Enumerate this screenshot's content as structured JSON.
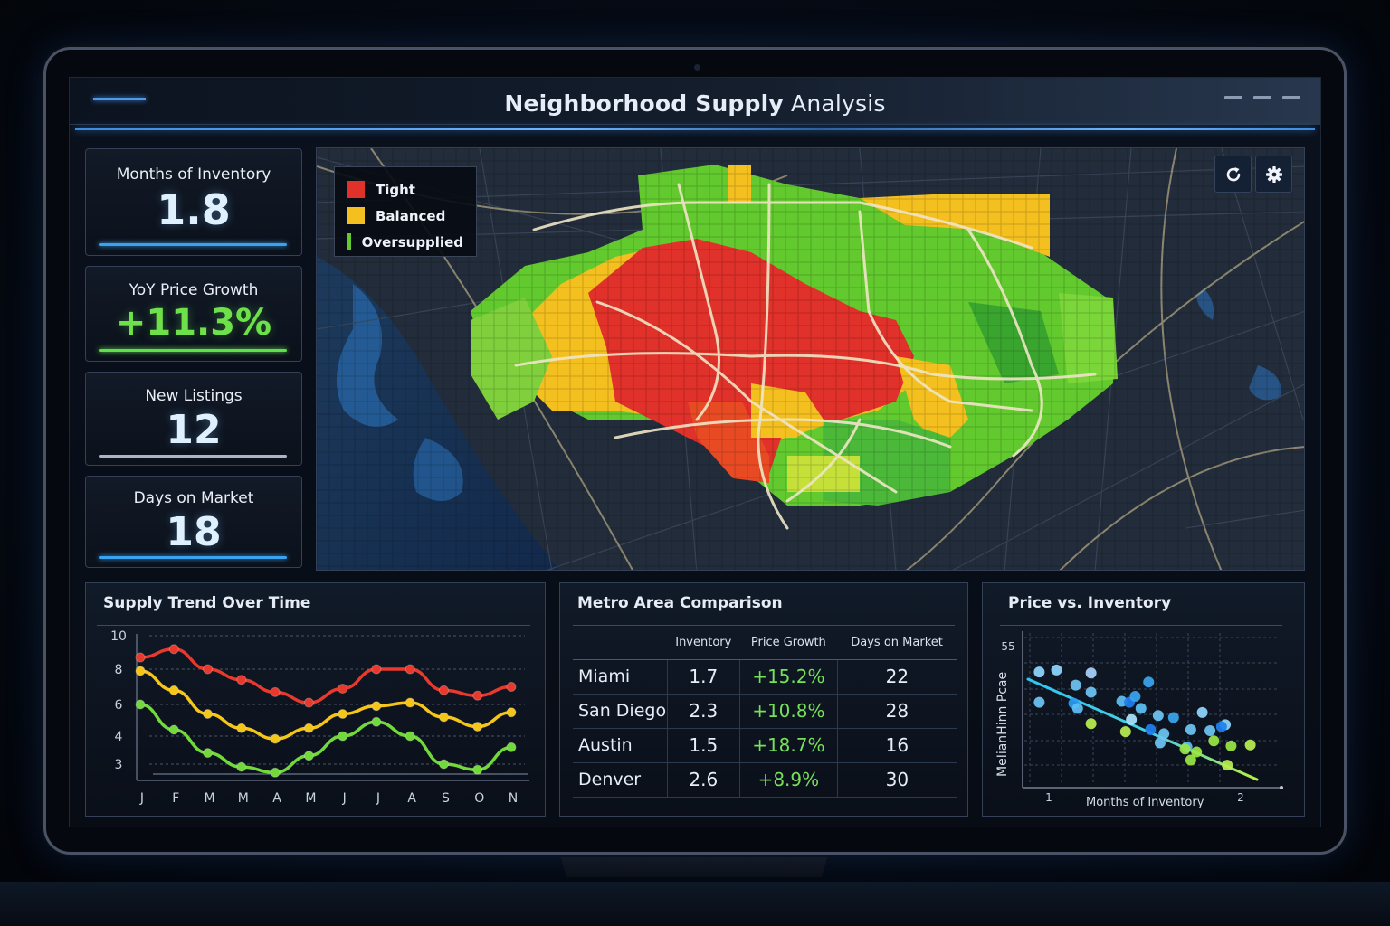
{
  "window": {
    "title_bold": "Neighborhood Supply",
    "title_rest": " Analysis"
  },
  "kpis": [
    {
      "label": "Months of Inventory",
      "value": "1.8",
      "accent": "#3aa3f0"
    },
    {
      "label": "YoY Price Growth",
      "value": "+11.3%",
      "accent": "#5fe04a"
    },
    {
      "label": "New Listings",
      "value": "12",
      "accent": "#a9b4c8"
    },
    {
      "label": "Days on Market",
      "value": "18",
      "accent": "#3aa3f0"
    }
  ],
  "map": {
    "legend": [
      {
        "label": "Tight",
        "color": "#e0312a"
      },
      {
        "label": "Balanced",
        "color": "#f4c020"
      },
      {
        "label": "Oversupplied",
        "color": "#62c92e"
      }
    ],
    "buttons": {
      "refresh": "refresh-icon",
      "settings": "gear-icon"
    }
  },
  "supply_trend": {
    "title": "Supply Trend Over Time"
  },
  "metro": {
    "title": "Metro Area Comparison",
    "columns": [
      "",
      "Inventory",
      "Price Growth",
      "Days on Market"
    ],
    "rows": [
      {
        "city": "Miami",
        "inventory": "1.7",
        "price_growth": "+15.2%",
        "days": "22"
      },
      {
        "city": "San Diego",
        "inventory": "2.3",
        "price_growth": "+10.8%",
        "days": "28"
      },
      {
        "city": "Austin",
        "inventory": "1.5",
        "price_growth": "+18.7%",
        "days": "16"
      },
      {
        "city": "Denver",
        "inventory": "2.6",
        "price_growth": "+8.9%",
        "days": "30"
      }
    ]
  },
  "price_vs_inventory": {
    "title": "Price vs. Inventory",
    "ylabel": "MeIianHinn Pcae",
    "xlabel": "Months of Inventory",
    "y_tick": "55",
    "x_ticks": [
      "1",
      "2"
    ]
  },
  "chart_data": [
    {
      "type": "line",
      "title": "Supply Trend Over Time",
      "categories": [
        "J",
        "F",
        "M",
        "M",
        "A",
        "M",
        "J",
        "J",
        "A",
        "S",
        "O",
        "N"
      ],
      "y_ticks": [
        "10",
        "8",
        "6",
        "4",
        "3"
      ],
      "ylim": [
        2.2,
        10
      ],
      "grid": true,
      "series": [
        {
          "name": "Tight",
          "color": "#e8392c",
          "values": [
            8.7,
            9.2,
            8.0,
            7.4,
            6.7,
            6.1,
            6.9,
            8.0,
            8.0,
            6.8,
            6.5,
            7.0
          ]
        },
        {
          "name": "Balanced",
          "color": "#f5c518",
          "values": [
            7.9,
            6.8,
            5.4,
            4.5,
            3.9,
            4.5,
            5.4,
            5.9,
            6.1,
            5.2,
            4.6,
            5.5
          ]
        },
        {
          "name": "Oversupplied",
          "color": "#72d93a",
          "values": [
            6.0,
            4.4,
            3.4,
            2.9,
            2.7,
            3.3,
            4.0,
            4.9,
            4.0,
            3.0,
            2.8,
            3.6
          ]
        }
      ]
    },
    {
      "type": "scatter",
      "title": "Price vs. Inventory",
      "xlabel": "Months of Inventory",
      "ylabel": "Median Price",
      "x_ticks": [
        "1",
        "2"
      ],
      "y_ticks": [
        "55"
      ],
      "grid": true,
      "trendline": {
        "from": [
          0.9,
          51.5
        ],
        "to": [
          2.1,
          40.5
        ]
      },
      "points": [
        {
          "x": 0.95,
          "y": 52.6,
          "c": "#8fd8ff"
        },
        {
          "x": 1.04,
          "y": 52.8,
          "c": "#8fd8ff"
        },
        {
          "x": 1.22,
          "y": 52.5,
          "c": "#a9d2ff"
        },
        {
          "x": 1.14,
          "y": 51.3,
          "c": "#6ec6f5"
        },
        {
          "x": 1.22,
          "y": 50.6,
          "c": "#6ec6f5"
        },
        {
          "x": 0.95,
          "y": 49.6,
          "c": "#6ec6f5"
        },
        {
          "x": 1.13,
          "y": 49.5,
          "c": "#2b9cf0"
        },
        {
          "x": 1.15,
          "y": 49.0,
          "c": "#5ec0f5"
        },
        {
          "x": 1.38,
          "y": 49.7,
          "c": "#5ec0f5"
        },
        {
          "x": 1.42,
          "y": 49.6,
          "c": "#1f7ff0"
        },
        {
          "x": 1.45,
          "y": 50.2,
          "c": "#3aa6f0"
        },
        {
          "x": 1.52,
          "y": 51.6,
          "c": "#3aa6f0"
        },
        {
          "x": 1.48,
          "y": 49.0,
          "c": "#5ec0f5"
        },
        {
          "x": 1.57,
          "y": 48.3,
          "c": "#6ec6f5"
        },
        {
          "x": 1.43,
          "y": 47.9,
          "c": "#a8e6ff"
        },
        {
          "x": 1.22,
          "y": 47.5,
          "c": "#b8f050"
        },
        {
          "x": 1.4,
          "y": 46.7,
          "c": "#b8f050"
        },
        {
          "x": 1.53,
          "y": 46.9,
          "c": "#1f7ff0"
        },
        {
          "x": 1.65,
          "y": 48.1,
          "c": "#3aa6f0"
        },
        {
          "x": 1.6,
          "y": 46.5,
          "c": "#6ec6f5"
        },
        {
          "x": 1.58,
          "y": 45.6,
          "c": "#6ec6f5"
        },
        {
          "x": 1.74,
          "y": 46.9,
          "c": "#6ec6f5"
        },
        {
          "x": 1.84,
          "y": 46.8,
          "c": "#6ec6f5"
        },
        {
          "x": 1.8,
          "y": 48.6,
          "c": "#8fd8ff"
        },
        {
          "x": 1.72,
          "y": 45.2,
          "c": "#5ec0f5"
        },
        {
          "x": 1.92,
          "y": 47.4,
          "c": "#8fd8ff"
        },
        {
          "x": 1.9,
          "y": 47.2,
          "c": "#1f7ff0"
        },
        {
          "x": 1.71,
          "y": 45.0,
          "c": "#9be845"
        },
        {
          "x": 1.77,
          "y": 44.7,
          "c": "#9be845"
        },
        {
          "x": 1.86,
          "y": 45.8,
          "c": "#9be845"
        },
        {
          "x": 1.95,
          "y": 45.3,
          "c": "#9be845"
        },
        {
          "x": 2.05,
          "y": 45.4,
          "c": "#b8f050"
        },
        {
          "x": 1.74,
          "y": 43.9,
          "c": "#9be845"
        },
        {
          "x": 1.93,
          "y": 43.4,
          "c": "#b8f050"
        }
      ]
    }
  ]
}
